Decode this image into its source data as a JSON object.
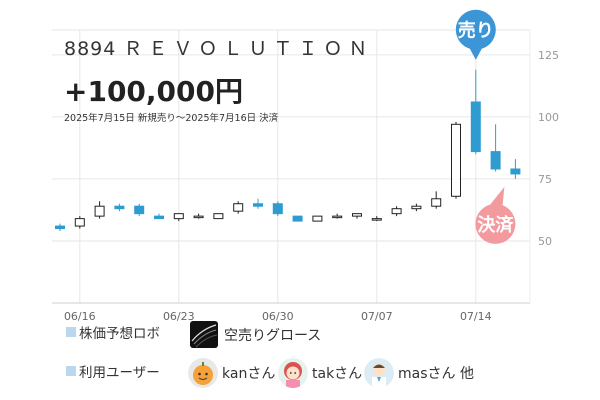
{
  "header": {
    "code": "8894",
    "name": "ＲＥＶＯＬＵＴＩＯＮ",
    "profit": "+100,000円",
    "period": "2025年7月15日 新規売り〜2025年7月16日 決済"
  },
  "markers": {
    "sell": "売り",
    "settle": "決済"
  },
  "legend": {
    "robo_label": "株価予想ロボ",
    "robo_name": "空売りグロース",
    "user_label": "利用ユーザー",
    "users": [
      "kanさん",
      "takさん",
      "masさん 他"
    ]
  },
  "colors": {
    "up_candle_fill": "#ffffff",
    "up_candle_stroke": "#222222",
    "down_candle": "#2e9cd0",
    "sell_badge": "#3b95d6",
    "settle_badge": "#f39a9f",
    "legend_square": "#b9d7ee"
  },
  "chart_data": {
    "type": "candlestick",
    "x_tick_labels": [
      "06/16",
      "06/23",
      "06/30",
      "07/07",
      "07/14"
    ],
    "y_tick_labels": [
      "50",
      "75",
      "100",
      "125"
    ],
    "ylim": [
      25,
      135
    ],
    "grid": true,
    "candles": [
      {
        "date": "06/13",
        "open": 56,
        "high": 57,
        "low": 54,
        "close": 55
      },
      {
        "date": "06/16",
        "open": 56,
        "high": 60,
        "low": 55,
        "close": 59
      },
      {
        "date": "06/17",
        "open": 60,
        "high": 66,
        "low": 59,
        "close": 64
      },
      {
        "date": "06/18",
        "open": 64,
        "high": 65,
        "low": 62,
        "close": 63
      },
      {
        "date": "06/19",
        "open": 64,
        "high": 65,
        "low": 60,
        "close": 61
      },
      {
        "date": "06/20",
        "open": 60,
        "high": 61,
        "low": 59,
        "close": 59
      },
      {
        "date": "06/23",
        "open": 59,
        "high": 61,
        "low": 58,
        "close": 61
      },
      {
        "date": "06/24",
        "open": 60,
        "high": 61,
        "low": 59,
        "close": 60
      },
      {
        "date": "06/25",
        "open": 59,
        "high": 61,
        "low": 59,
        "close": 61
      },
      {
        "date": "06/26",
        "open": 62,
        "high": 66,
        "low": 61,
        "close": 65
      },
      {
        "date": "06/27",
        "open": 65,
        "high": 67,
        "low": 63,
        "close": 64
      },
      {
        "date": "06/30",
        "open": 65,
        "high": 66,
        "low": 60,
        "close": 61
      },
      {
        "date": "07/01",
        "open": 60,
        "high": 60,
        "low": 58,
        "close": 58
      },
      {
        "date": "07/02",
        "open": 58,
        "high": 60,
        "low": 58,
        "close": 60
      },
      {
        "date": "07/03",
        "open": 60,
        "high": 61,
        "low": 59,
        "close": 60
      },
      {
        "date": "07/04",
        "open": 60,
        "high": 61,
        "low": 59,
        "close": 61
      },
      {
        "date": "07/07",
        "open": 59,
        "high": 60,
        "low": 58,
        "close": 59
      },
      {
        "date": "07/08",
        "open": 61,
        "high": 64,
        "low": 60,
        "close": 63
      },
      {
        "date": "07/09",
        "open": 63,
        "high": 65,
        "low": 62,
        "close": 64
      },
      {
        "date": "07/10",
        "open": 64,
        "high": 70,
        "low": 63,
        "close": 67
      },
      {
        "date": "07/11",
        "open": 68,
        "high": 98,
        "low": 67,
        "close": 97
      },
      {
        "date": "07/14",
        "open": 106,
        "high": 119,
        "low": 85,
        "close": 86
      },
      {
        "date": "07/15",
        "open": 86,
        "high": 97,
        "low": 78,
        "close": 79
      },
      {
        "date": "07/16",
        "open": 79,
        "high": 83,
        "low": 75,
        "close": 77
      }
    ]
  }
}
